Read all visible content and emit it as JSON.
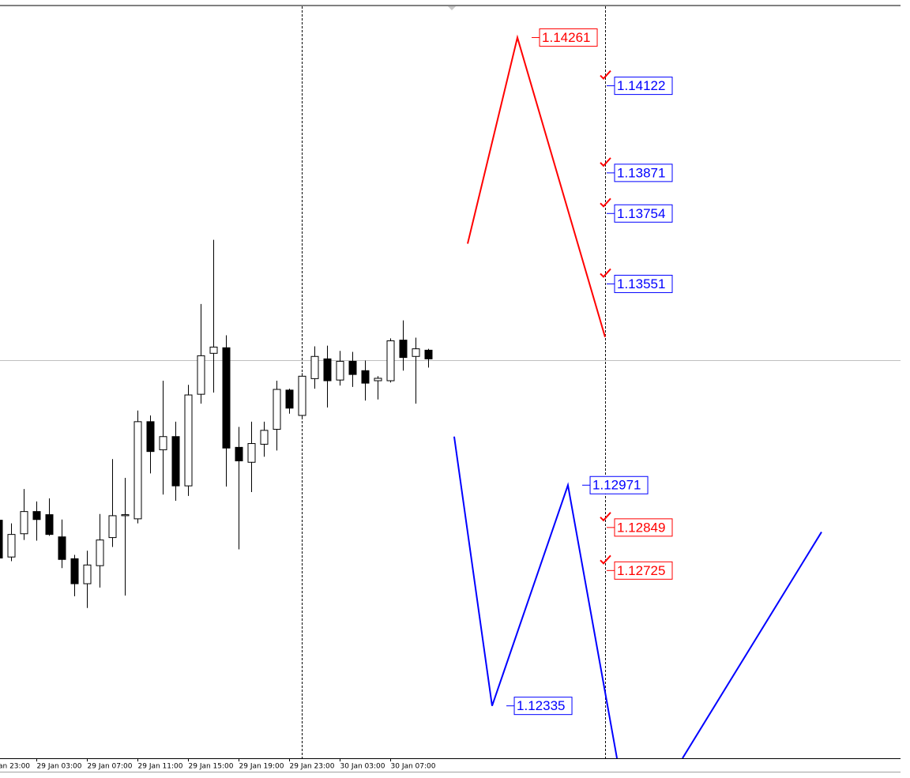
{
  "chart_data": {
    "type": "candlestick",
    "categories": [
      null,
      null,
      null,
      "29 Jan 03:00",
      null,
      null,
      null,
      "29 Jan 07:00",
      null,
      null,
      null,
      "29 Jan 11:00",
      null,
      null,
      null,
      "29 Jan 15:00",
      null,
      null,
      null,
      "29 Jan 19:00",
      null,
      null,
      null,
      "29 Jan 23:00",
      null,
      null,
      null,
      "30 Jan 03:00",
      null,
      null,
      null,
      "30 Jan 07:00",
      null,
      null,
      null
    ],
    "edge_label": "an 23:00",
    "open": [
      1.1287,
      1.12764,
      1.12831,
      1.12895,
      1.12886,
      1.12822,
      1.12759,
      1.12687,
      1.12739,
      1.1282,
      1.12883,
      1.12874,
      1.13154,
      1.13073,
      1.13111,
      1.12969,
      1.13233,
      1.13351,
      1.13367,
      1.1308,
      1.13037,
      1.13089,
      1.13132,
      1.13245,
      1.13172,
      1.13278,
      1.13335,
      1.13274,
      1.13328,
      1.13301,
      1.13272,
      1.13272,
      1.13389,
      1.13342,
      1.1336
    ],
    "high": [
      1.1287,
      1.12861,
      1.1296,
      1.12924,
      1.12933,
      1.12872,
      1.1277,
      1.12782,
      1.12888,
      1.13046,
      1.12992,
      1.13186,
      1.13172,
      1.13272,
      1.13154,
      1.1326,
      1.13493,
      1.13678,
      1.13403,
      1.13139,
      1.13154,
      1.13154,
      1.13272,
      1.13249,
      1.13294,
      1.13371,
      1.13373,
      1.13358,
      1.13355,
      1.1333,
      1.13285,
      1.13394,
      1.13446,
      1.13396,
      1.13364
    ],
    "low": [
      1.12752,
      1.12752,
      1.12813,
      1.12811,
      1.12825,
      1.12732,
      1.12651,
      1.12617,
      1.12676,
      1.12793,
      1.12653,
      1.12861,
      1.13005,
      1.12944,
      1.12926,
      1.1294,
      1.13206,
      1.13238,
      1.12967,
      1.12786,
      1.12951,
      1.13053,
      1.13071,
      1.13177,
      1.13166,
      1.13249,
      1.13195,
      1.13258,
      1.13254,
      1.13215,
      1.13218,
      1.13267,
      1.13301,
      1.13206,
      1.1331
    ],
    "close": [
      1.12761,
      1.12829,
      1.12895,
      1.12872,
      1.12829,
      1.12757,
      1.12687,
      1.12741,
      1.12813,
      1.12883,
      1.12886,
      1.13154,
      1.13068,
      1.13111,
      1.12969,
      1.13231,
      1.13344,
      1.13369,
      1.13078,
      1.13041,
      1.13091,
      1.13129,
      1.13247,
      1.13193,
      1.13285,
      1.13342,
      1.13272,
      1.13328,
      1.1329,
      1.13265,
      1.13279,
      1.13387,
      1.13339,
      1.13364,
      1.13335
    ],
    "xlim": [
      0.125,
      71.375
    ],
    "ylim": [
      1.12184,
      1.14351
    ],
    "up_color": "#ffffff",
    "down_color": "#000000",
    "lines": [
      {
        "color": "#ff0000",
        "x": [
          37.125,
          41.0625,
          48
        ],
        "y": [
          1.13667,
          1.14261,
          1.13398
        ]
      },
      {
        "color": "#0000ff",
        "x": [
          36.06,
          39.06,
          45.06,
          48.94
        ],
        "y": [
          1.13111,
          1.12335,
          1.12971,
          1.12184
        ]
      },
      {
        "color": "#0000ff",
        "x": [
          54.125,
          65.125
        ],
        "y": [
          1.12184,
          1.12836
        ]
      }
    ],
    "levels": [
      {
        "value": 1.14261,
        "color": "#ff0000",
        "x": 42.19,
        "check": false
      },
      {
        "value": 1.14122,
        "color": "#0000ff",
        "x": 48.125,
        "check": true
      },
      {
        "value": 1.13871,
        "color": "#0000ff",
        "x": 48.125,
        "check": true
      },
      {
        "value": 1.13754,
        "color": "#0000ff",
        "x": 48.125,
        "check": true
      },
      {
        "value": 1.13551,
        "color": "#0000ff",
        "x": 48.125,
        "check": true
      },
      {
        "value": 1.12971,
        "color": "#0000ff",
        "x": 46.19,
        "check": false
      },
      {
        "value": 1.12849,
        "color": "#ff0000",
        "x": 48.125,
        "check": true
      },
      {
        "value": 1.12725,
        "color": "#ff0000",
        "x": 48.125,
        "check": true
      },
      {
        "value": 1.12335,
        "color": "#0000ff",
        "x": 40.19,
        "check": false
      }
    ],
    "vertical_lines": [
      24,
      48
    ],
    "horizontal_line": 1.1333
  }
}
